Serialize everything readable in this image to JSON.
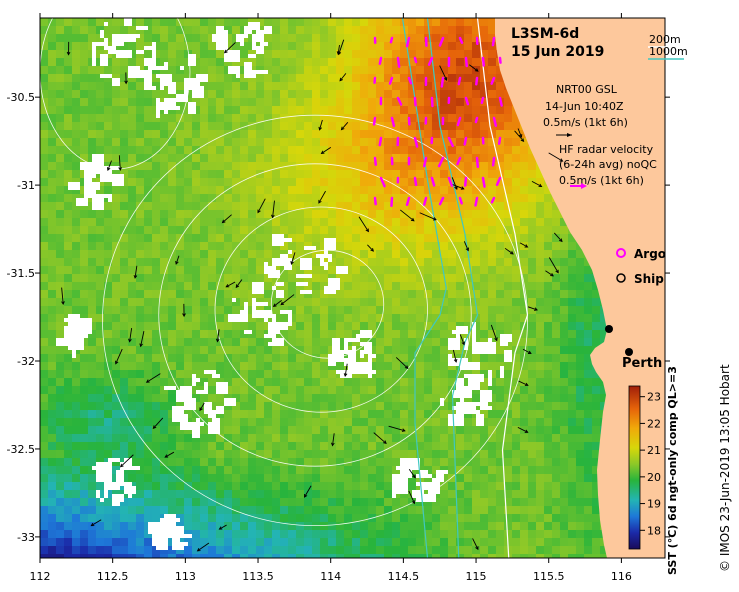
{
  "title": {
    "product": "L3SM-6d",
    "date": "15 Jun 2019"
  },
  "depth_legend": {
    "shallow": "200m",
    "deep": "1000m",
    "shallow_color": "#ffffff",
    "deep_color": "#40c8c0"
  },
  "altimetry": {
    "line1": "NRT00 GSL",
    "line2": "14-Jun 10:40Z",
    "scale": "0.5m/s (1kt 6h)"
  },
  "hf_radar": {
    "line1": "HF radar velocity",
    "line2": "(6-24h avg) noQC",
    "scale": "0.5m/s (1kt 6h)",
    "color": "#ff00ff"
  },
  "markers": {
    "argo": "Argo",
    "ship": "Ship",
    "city": "Perth"
  },
  "colorbar": {
    "label": "SST (°C) 6d ngt-only comp QL>=3",
    "min": 17.3,
    "max": 23.4,
    "ticks": [
      "18",
      "19",
      "20",
      "21",
      "22",
      "23"
    ]
  },
  "credit": "© IMOS 23-Jun-2019 13:05 Hobart",
  "axes": {
    "x_ticks": [
      "112",
      "112.5",
      "113",
      "113.5",
      "114",
      "114.5",
      "115",
      "115.5",
      "116"
    ],
    "y_ticks": [
      "-30.5",
      "-31",
      "-31.5",
      "-32",
      "-32.5",
      "-33"
    ],
    "xlim": [
      112,
      116.3
    ],
    "ylim": [
      -33.12,
      -30.05
    ]
  },
  "colors": {
    "land": "#fdc89c",
    "cloud": "#ffffff"
  }
}
